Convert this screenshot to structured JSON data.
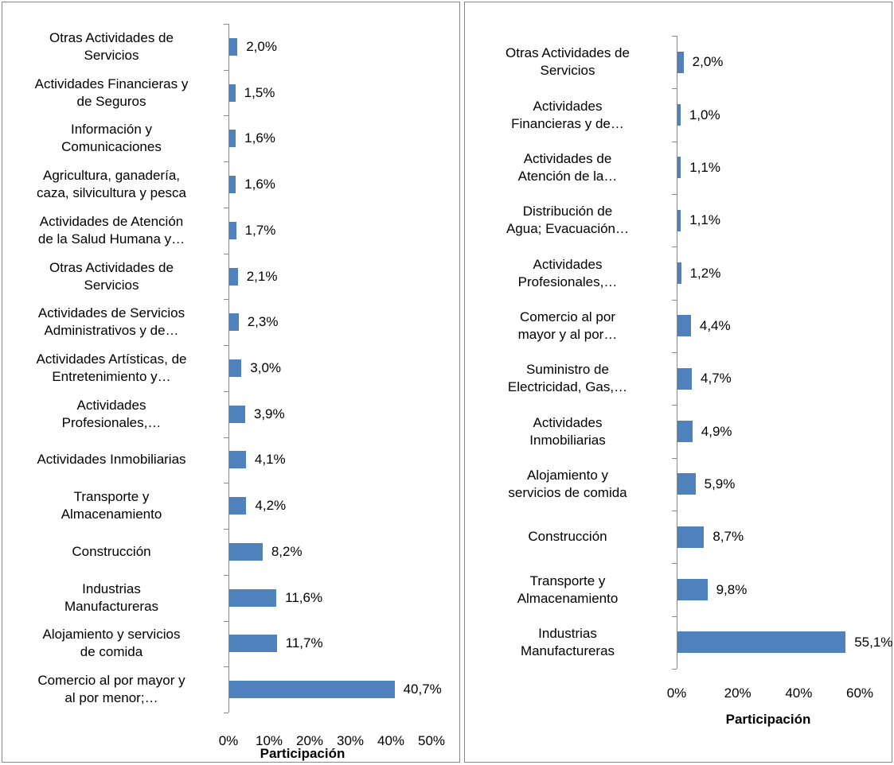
{
  "chart_data": [
    {
      "type": "bar",
      "orientation": "horizontal",
      "color": "#4f81bd",
      "categories": [
        "Otras Actividades de\nServicios",
        "Actividades Financieras y\nde Seguros",
        "Información y\nComunicaciones",
        "Agricultura, ganadería,\ncaza, silvicultura y pesca",
        "Actividades de Atención\nde la Salud Humana y…",
        "Otras Actividades de\nServicios",
        "Actividades de Servicios\nAdministrativos y de…",
        "Actividades Artísticas, de\nEntretenimiento y…",
        "Actividades\nProfesionales,…",
        "Actividades Inmobiliarias",
        "Transporte y\nAlmacenamiento",
        "Construcción",
        "Industrias\nManufactureras",
        "Alojamiento y servicios\nde comida",
        "Comercio al por mayor y\nal por menor;…"
      ],
      "values": [
        2.0,
        1.5,
        1.6,
        1.6,
        1.7,
        2.1,
        2.3,
        3.0,
        3.9,
        4.1,
        4.2,
        8.2,
        11.6,
        11.7,
        40.7
      ],
      "value_labels": [
        "2,0%",
        "1,5%",
        "1,6%",
        "1,6%",
        "1,7%",
        "2,1%",
        "2,3%",
        "3,0%",
        "3,9%",
        "4,1%",
        "4,2%",
        "8,2%",
        "11,6%",
        "11,7%",
        "40,7%"
      ],
      "xlim": [
        0,
        50
      ],
      "xticks": [
        {
          "value": 0,
          "label": "0%"
        },
        {
          "value": 10,
          "label": "10%"
        },
        {
          "value": 20,
          "label": "20%"
        },
        {
          "value": 30,
          "label": "30%"
        },
        {
          "value": 40,
          "label": "40%"
        },
        {
          "value": 50,
          "label": "50%"
        }
      ],
      "x_label": "Participación"
    },
    {
      "type": "bar",
      "orientation": "horizontal",
      "color": "#4f81bd",
      "categories": [
        "Otras Actividades de\nServicios",
        "Actividades\nFinancieras y de…",
        "Actividades de\nAtención de la…",
        "Distribución de\nAgua; Evacuación…",
        "Actividades\nProfesionales,…",
        "Comercio al por\nmayor y al por…",
        "Suministro de\nElectricidad, Gas,…",
        "Actividades\nInmobiliarias",
        "Alojamiento y\nservicios de comida",
        "Construcción",
        "Transporte y\nAlmacenamiento",
        "Industrias\nManufactureras"
      ],
      "values": [
        2.0,
        1.0,
        1.1,
        1.1,
        1.2,
        4.4,
        4.7,
        4.9,
        5.9,
        8.7,
        9.8,
        55.1
      ],
      "value_labels": [
        "2,0%",
        "1,0%",
        "1,1%",
        "1,1%",
        "1,2%",
        "4,4%",
        "4,7%",
        "4,9%",
        "5,9%",
        "8,7%",
        "9,8%",
        "55,1%"
      ],
      "xlim": [
        0,
        60
      ],
      "xticks": [
        {
          "value": 0,
          "label": "0%"
        },
        {
          "value": 20,
          "label": "20%"
        },
        {
          "value": 40,
          "label": "40%"
        },
        {
          "value": 60,
          "label": "60%"
        }
      ],
      "x_label": "Participación"
    }
  ]
}
